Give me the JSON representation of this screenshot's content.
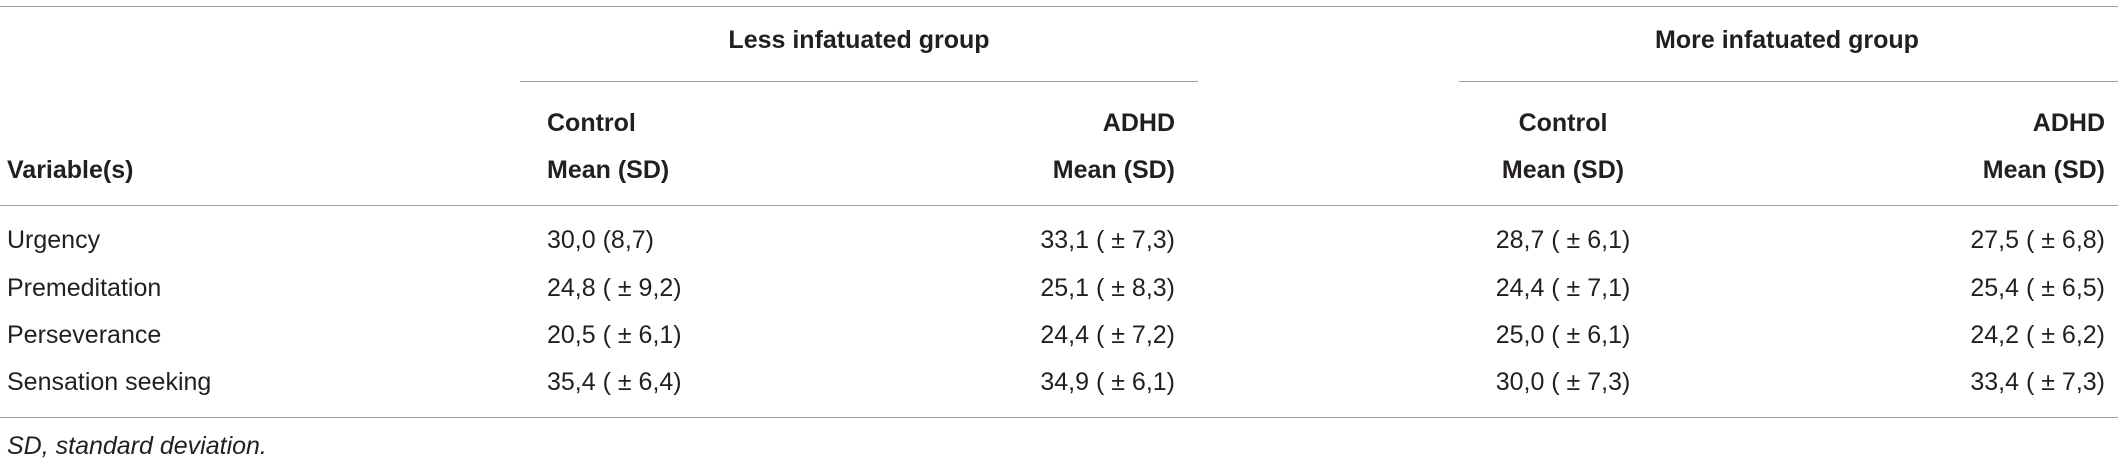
{
  "table": {
    "row_header_label": "Variable(s)",
    "group_headers": [
      "Less infatuated group",
      "More infatuated group"
    ],
    "column_headers": [
      [
        "Control",
        "Mean (SD)"
      ],
      [
        "ADHD",
        "Mean (SD)"
      ],
      [
        "Control",
        "Mean (SD)"
      ],
      [
        "ADHD",
        "Mean (SD)"
      ]
    ],
    "rows": [
      [
        "Urgency",
        "30,0 (8,7)",
        "33,1 ( ± 7,3)",
        "28,7 ( ± 6,1)",
        "27,5 ( ± 6,8)"
      ],
      [
        "Premeditation",
        "24,8 ( ± 9,2)",
        "25,1 ( ± 8,3)",
        "24,4 ( ± 7,1)",
        "25,4 ( ± 6,5)"
      ],
      [
        "Perseverance",
        "20,5 ( ± 6,1)",
        "24,4 ( ± 7,2)",
        "25,0 ( ± 6,1)",
        "24,2 ( ± 6,2)"
      ],
      [
        "Sensation seeking",
        "35,4 ( ± 6,4)",
        "34,9 ( ± 6,1)",
        "30,0 ( ± 7,3)",
        "33,4 ( ± 7,3)"
      ]
    ],
    "footnote": "SD, standard deviation."
  }
}
